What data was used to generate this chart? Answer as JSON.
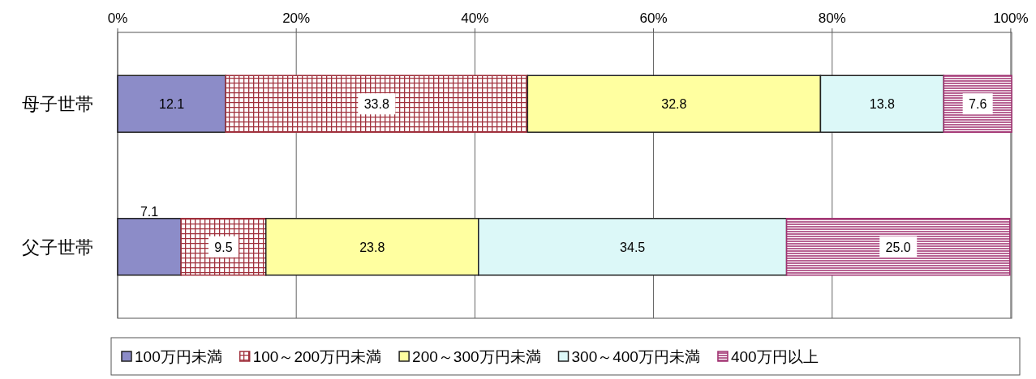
{
  "chart_data": {
    "type": "bar",
    "orientation": "horizontal",
    "stacked": true,
    "grid": "x",
    "legend": "bottom",
    "categories": [
      "母子世帯",
      "父子世帯"
    ],
    "xlim": [
      0,
      100.1
    ],
    "xticks": [
      {
        "value": 0,
        "label": "0%"
      },
      {
        "value": 20,
        "label": "20%"
      },
      {
        "value": 40,
        "label": "40%"
      },
      {
        "value": 60,
        "label": "60%"
      },
      {
        "value": 80,
        "label": "80%"
      },
      {
        "value": 100,
        "label": "100%"
      }
    ],
    "series": [
      {
        "name": "100万円未満",
        "color": "#8c8cc8",
        "values": [
          12.1,
          7.1
        ],
        "value_labels": [
          "12.1",
          "7.1"
        ]
      },
      {
        "name": "100～200万円未満",
        "color": "#a0303c",
        "values": [
          33.8,
          9.5
        ],
        "value_labels": [
          "33.8",
          "9.5"
        ]
      },
      {
        "name": "200～300万円未満",
        "color": "#ffffa0",
        "values": [
          32.8,
          23.8
        ],
        "value_labels": [
          "32.8",
          "23.8"
        ]
      },
      {
        "name": "300～400万円未満",
        "color": "#dcf8f8",
        "values": [
          13.8,
          34.5
        ],
        "value_labels": [
          "13.8",
          "34.5"
        ]
      },
      {
        "name": "400万円以上",
        "color": "#a03070",
        "values": [
          7.6,
          25.0
        ],
        "value_labels": [
          "7.6",
          "25.0"
        ]
      }
    ]
  }
}
